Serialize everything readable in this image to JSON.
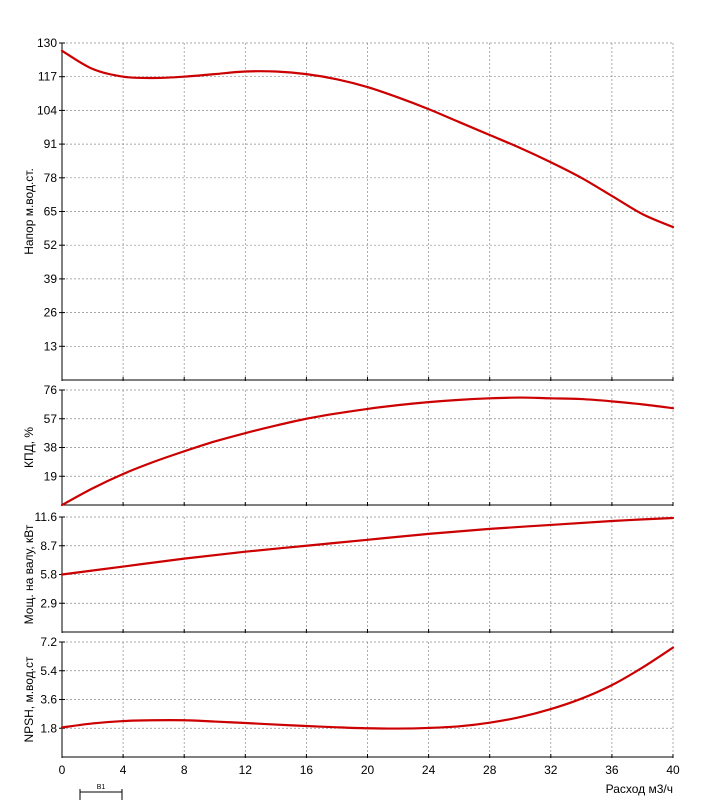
{
  "chart_data": [
    {
      "type": "line",
      "ylabel": "Напор м.вод.ст.",
      "ylim": [
        0,
        130
      ],
      "yticks": [
        13,
        26,
        39,
        52,
        65,
        78,
        91,
        104,
        117,
        130
      ],
      "grid": true,
      "color": "#cc0000",
      "x": [
        0,
        2,
        4,
        6,
        8,
        10,
        12,
        14,
        16,
        18,
        20,
        22,
        24,
        26,
        28,
        30,
        32,
        34,
        36,
        38,
        40
      ],
      "values": [
        127,
        120,
        117,
        116.5,
        117,
        118,
        119,
        119,
        118,
        116,
        113,
        109,
        104.5,
        99.5,
        94.5,
        89.5,
        84,
        78,
        71,
        64,
        59
      ]
    },
    {
      "type": "line",
      "ylabel": "КПД, %",
      "ylim": [
        0,
        76
      ],
      "yticks": [
        19,
        38,
        57,
        76
      ],
      "grid": true,
      "color": "#cc0000",
      "x": [
        0,
        2,
        4,
        6,
        8,
        10,
        12,
        14,
        16,
        18,
        20,
        22,
        24,
        26,
        28,
        30,
        32,
        34,
        36,
        38,
        40
      ],
      "values": [
        0,
        11,
        20.5,
        28.5,
        35.5,
        42,
        47.5,
        52.5,
        57,
        60.5,
        63.5,
        66,
        68,
        69.5,
        70.5,
        71,
        70.5,
        70,
        68.5,
        66.5,
        64
      ]
    },
    {
      "type": "line",
      "ylabel": "Мощ. на валу, кВт",
      "ylim": [
        0,
        11.6
      ],
      "yticks": [
        2.9,
        5.8,
        8.7,
        11.6
      ],
      "grid": true,
      "color": "#cc0000",
      "x": [
        0,
        4,
        8,
        12,
        16,
        20,
        24,
        28,
        32,
        36,
        40
      ],
      "values": [
        5.8,
        6.6,
        7.4,
        8.1,
        8.7,
        9.3,
        9.9,
        10.4,
        10.8,
        11.2,
        11.5
      ]
    },
    {
      "type": "line",
      "ylabel": "NPSH, м.вод.ст",
      "xlabel": "Расход м3/ч",
      "ylim": [
        0,
        7.2
      ],
      "yticks": [
        1.8,
        3.6,
        5.4,
        7.2
      ],
      "xlim": [
        0,
        40
      ],
      "xticks": [
        0,
        4,
        8,
        12,
        16,
        20,
        24,
        28,
        32,
        36,
        40
      ],
      "grid": true,
      "color": "#cc0000",
      "x": [
        0,
        2,
        4,
        6,
        8,
        10,
        12,
        14,
        16,
        18,
        20,
        22,
        24,
        26,
        28,
        30,
        32,
        34,
        36,
        38,
        40
      ],
      "values": [
        1.85,
        2.1,
        2.25,
        2.3,
        2.3,
        2.22,
        2.13,
        2.03,
        1.94,
        1.86,
        1.8,
        1.78,
        1.82,
        1.92,
        2.15,
        2.5,
        3.0,
        3.65,
        4.5,
        5.6,
        6.85
      ]
    }
  ],
  "footer": {
    "marker_label": "B1"
  }
}
